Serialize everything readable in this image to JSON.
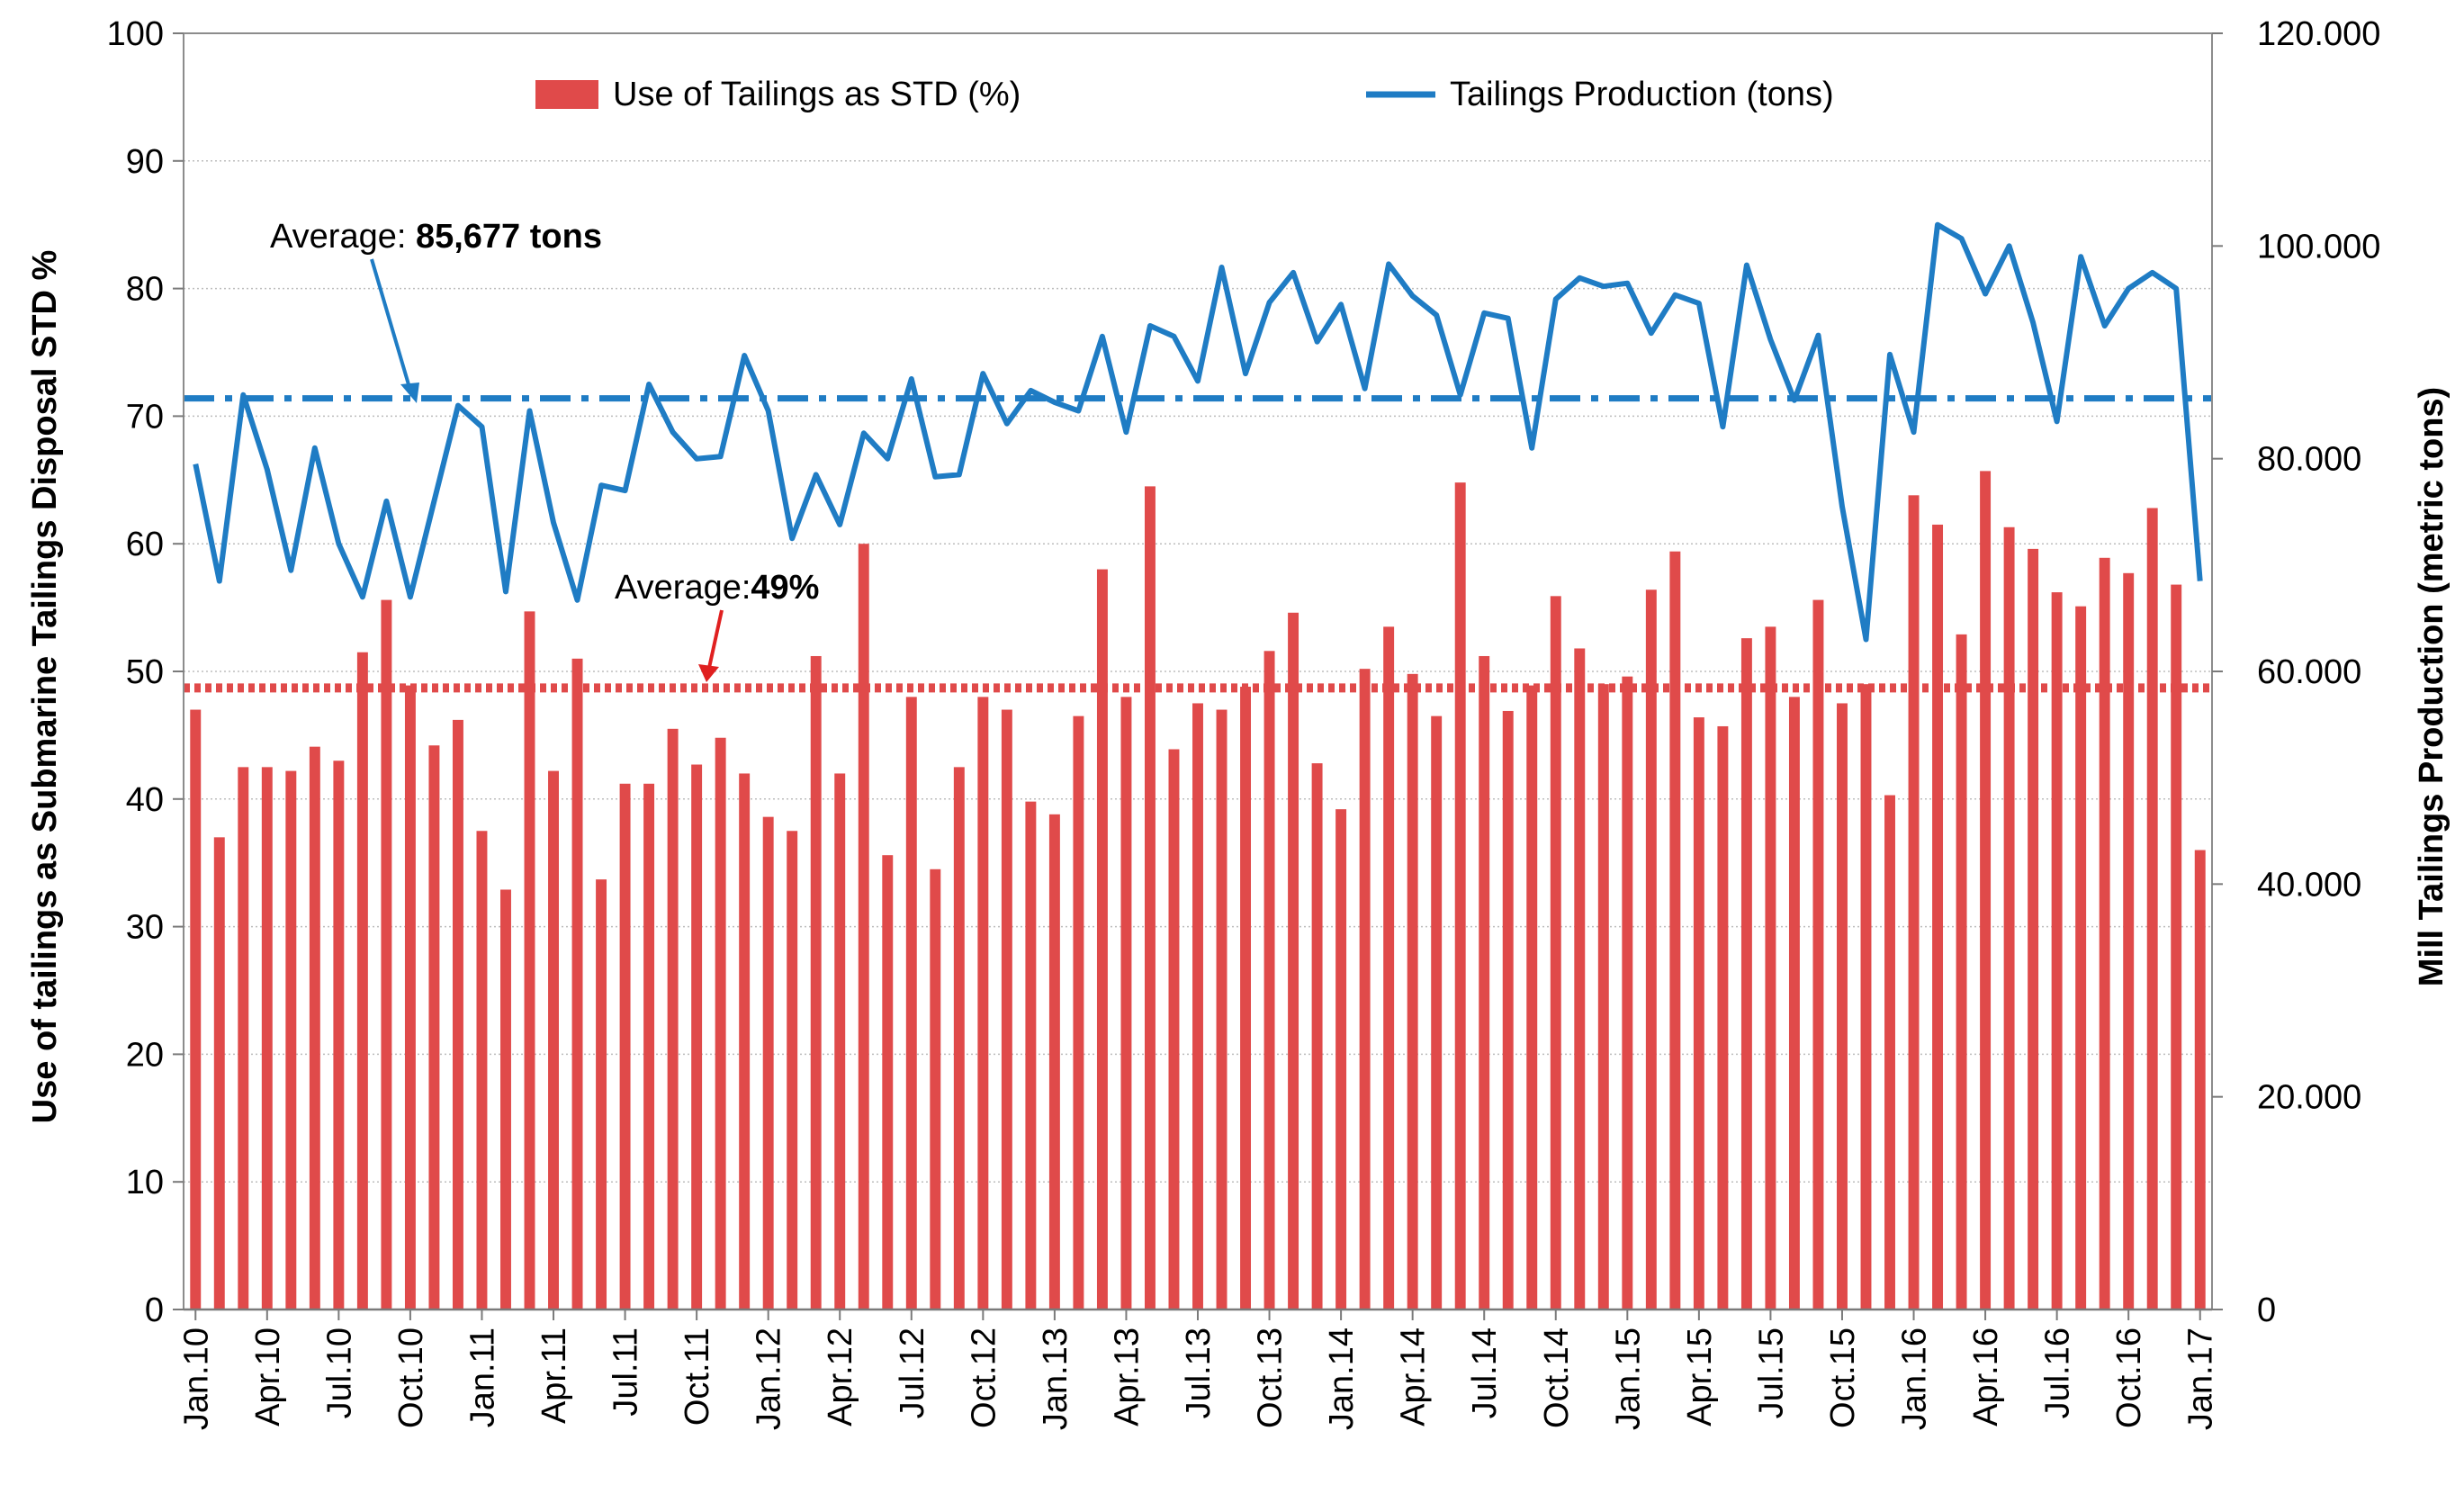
{
  "chart_data": {
    "type": "bar+line",
    "title": "",
    "left_axis": {
      "label": "Use of tailings as Submarine Tailings Disposal STD %",
      "range": [
        0,
        100
      ],
      "ticks": [
        "0",
        "10",
        "20",
        "30",
        "40",
        "50",
        "60",
        "70",
        "80",
        "90",
        "100"
      ]
    },
    "right_axis": {
      "label": "Mill Tailings Production (metric tons)",
      "range": [
        0,
        120000
      ],
      "ticks": [
        "0",
        "20.000",
        "40.000",
        "60.000",
        "80.000",
        "100.000",
        "120.000"
      ]
    },
    "x_tick_labels": [
      "Jan.10",
      "Apr.10",
      "Jul.10",
      "Oct.10",
      "Jan.11",
      "Apr.11",
      "Jul.11",
      "Oct.11",
      "Jan.12",
      "Apr.12",
      "Jul.12",
      "Oct.12",
      "Jan.13",
      "Apr.13",
      "Jul.13",
      "Oct.13",
      "Jan.14",
      "Apr.14",
      "Jul.14",
      "Oct.14",
      "Jan.15",
      "Apr.15",
      "Jul.15",
      "Oct.15",
      "Jan.16",
      "Apr.16",
      "Jul.16",
      "Oct.16",
      "Jan.17"
    ],
    "legend": {
      "placement": "top",
      "bar_label": "Use of Tailings as STD (%)",
      "line_label": "Tailings Production (tons)"
    },
    "colors": {
      "bar": "#e04a4a",
      "line": "#1f7cc4",
      "grid": "#bdbdbd"
    },
    "series": [
      {
        "name": "Use of Tailings as STD (%)",
        "axis": "left",
        "type": "bar",
        "values": [
          47,
          37,
          42.5,
          42.5,
          42.2,
          44.1,
          43,
          51.5,
          55.6,
          48.9,
          44.2,
          46.2,
          37.5,
          32.9,
          54.7,
          42.2,
          51,
          33.7,
          41.2,
          41.2,
          45.5,
          42.7,
          44.8,
          42,
          38.6,
          37.5,
          51.2,
          42,
          60,
          35.6,
          48,
          34.5,
          42.5,
          48,
          47,
          39.8,
          38.8,
          46.5,
          58,
          48,
          64.5,
          43.9,
          47.5,
          47,
          48.8,
          51.6,
          54.6,
          42.8,
          39.2,
          50.2,
          53.5,
          49.8,
          46.5,
          64.8,
          51.2,
          46.9,
          48.9,
          55.9,
          51.8,
          49,
          49.6,
          56.4,
          59.4,
          46.4,
          45.7,
          52.6,
          53.5,
          48,
          55.6,
          47.5,
          49,
          40.3,
          63.8,
          61.5,
          52.9,
          65.7,
          61.3,
          59.6,
          56.2,
          55.1,
          58.9,
          57.7,
          62.8,
          56.8,
          36
        ]
      },
      {
        "name": "Tailings Production (tons)",
        "axis": "right",
        "type": "line",
        "values": [
          79500,
          68500,
          86000,
          79000,
          69500,
          81000,
          72000,
          67000,
          76000,
          67000,
          76000,
          85000,
          83000,
          67500,
          84500,
          74000,
          66700,
          77500,
          77000,
          87000,
          82500,
          80000,
          80200,
          89700,
          84500,
          72500,
          78500,
          73800,
          82400,
          80000,
          87500,
          78300,
          78500,
          88000,
          83300,
          86400,
          85300,
          84500,
          91500,
          82500,
          92500,
          91500,
          87300,
          98000,
          88000,
          94700,
          97500,
          91000,
          94500,
          86600,
          98300,
          95300,
          93500,
          86000,
          93700,
          93200,
          81000,
          95000,
          97000,
          96200,
          96500,
          91800,
          95400,
          94600,
          83000,
          98200,
          91200,
          85500,
          91600,
          75500,
          63000,
          89800,
          82500,
          102000,
          100700,
          95500,
          100000,
          92800,
          83500,
          99000,
          92500,
          96000,
          97500,
          96000,
          68500
        ]
      }
    ],
    "reference_lines": [
      {
        "axis": "right",
        "value": 85677,
        "label_text": "Average: ",
        "label_value": "85,677 tons",
        "style": "dash-dot",
        "color": "#1f7cc4"
      },
      {
        "axis": "left",
        "value": 48.7,
        "label_text": "Average:",
        "label_value": "49%",
        "style": "dotted",
        "color": "#e04a4a"
      }
    ]
  }
}
